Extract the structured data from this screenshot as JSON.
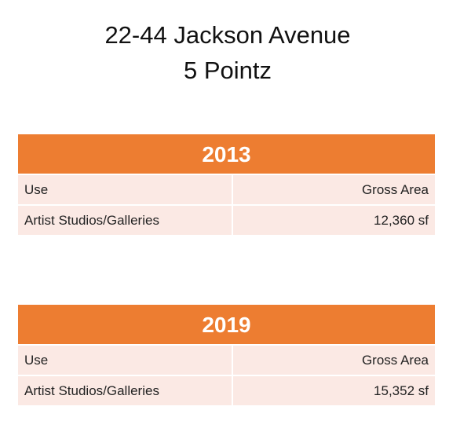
{
  "title": {
    "line1": "22-44 Jackson Avenue",
    "line2": "5 Pointz"
  },
  "colors": {
    "header": "#ED7D31",
    "row": "#FBE9E4"
  },
  "tables": [
    {
      "year": "2013",
      "headers": [
        "Use",
        "Gross Area"
      ],
      "rows": [
        [
          "Artist Studios/Galleries",
          "12,360 sf"
        ]
      ]
    },
    {
      "year": "2019",
      "headers": [
        "Use",
        "Gross Area"
      ],
      "rows": [
        [
          "Artist Studios/Galleries",
          "15,352 sf"
        ]
      ]
    }
  ]
}
